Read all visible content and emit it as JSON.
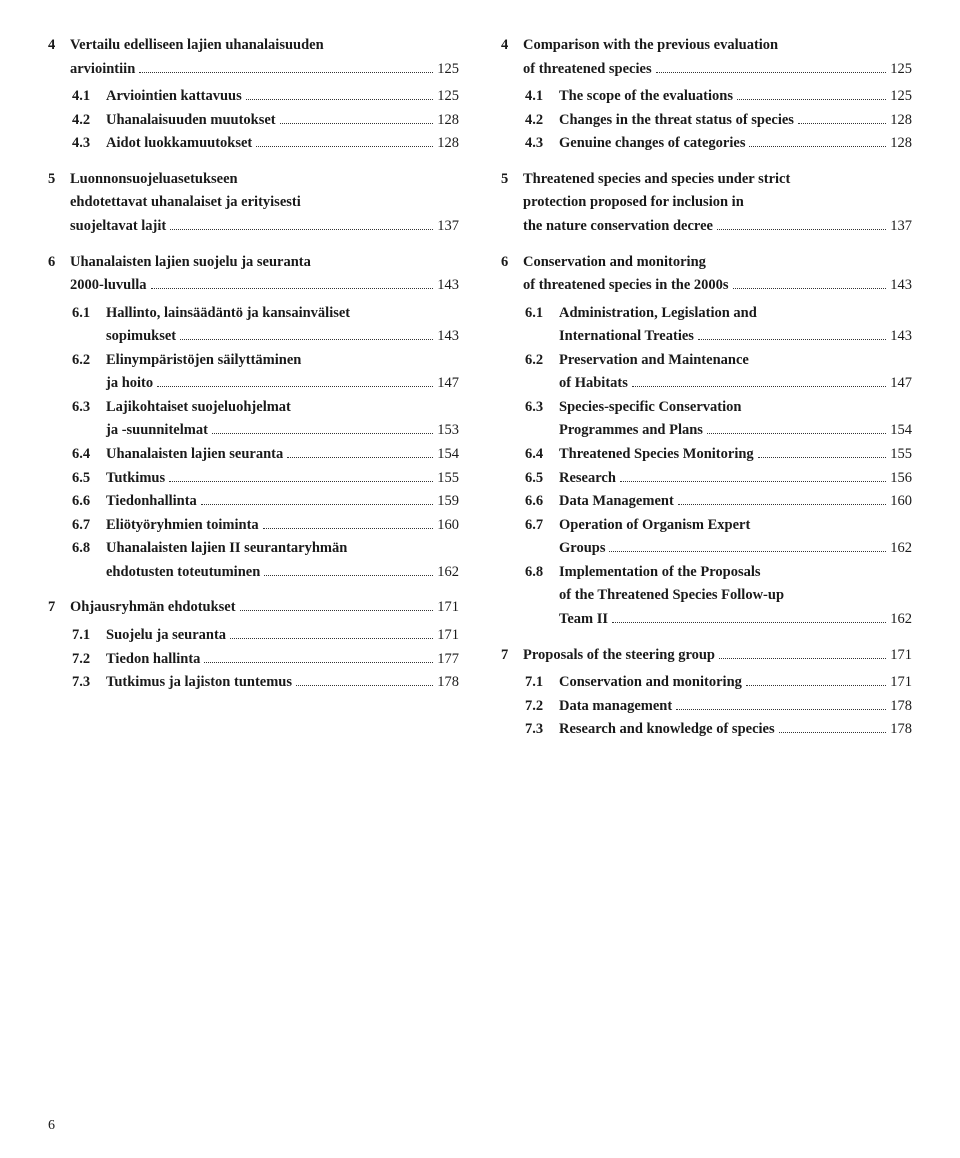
{
  "pageNumber": "6",
  "left": {
    "groups": [
      {
        "num": "4",
        "title_lines": [
          "Vertailu edelliseen lajien uhanalaisuuden",
          "arviointiin"
        ],
        "page": "125",
        "subs": [
          {
            "num": "4.1",
            "lines": [
              "Arviointien kattavuus"
            ],
            "page": "125"
          },
          {
            "num": "4.2",
            "lines": [
              "Uhanalaisuuden muutokset"
            ],
            "page": "128"
          },
          {
            "num": "4.3",
            "lines": [
              "Aidot luokkamuutokset"
            ],
            "page": "128"
          }
        ]
      },
      {
        "num": "5",
        "title_lines": [
          "Luonnonsuojeluasetukseen",
          "ehdotettavat uhanalaiset ja erityisesti",
          "suojeltavat lajit"
        ],
        "page": "137",
        "subs": []
      },
      {
        "num": "6",
        "title_lines": [
          "Uhanalaisten lajien suojelu ja seuranta",
          "2000-luvulla"
        ],
        "page": "143",
        "subs": [
          {
            "num": "6.1",
            "lines": [
              "Hallinto, lainsäädäntö ja kansainväliset",
              "sopimukset"
            ],
            "page": "143"
          },
          {
            "num": "6.2",
            "lines": [
              "Elinympäristöjen säilyttäminen",
              "ja hoito"
            ],
            "page": "147"
          },
          {
            "num": "6.3",
            "lines": [
              "Lajikohtaiset suojeluohjelmat",
              "ja -suunnitelmat"
            ],
            "page": "153"
          },
          {
            "num": "6.4",
            "lines": [
              "Uhanalaisten lajien seuranta"
            ],
            "page": "154"
          },
          {
            "num": "6.5",
            "lines": [
              "Tutkimus"
            ],
            "page": "155"
          },
          {
            "num": "6.6",
            "lines": [
              "Tiedonhallinta"
            ],
            "page": "159"
          },
          {
            "num": "6.7",
            "lines": [
              "Eliötyöryhmien toiminta"
            ],
            "page": "160"
          },
          {
            "num": "6.8",
            "lines": [
              "Uhanalaisten lajien II seurantaryhmän",
              "ehdotusten toteutuminen"
            ],
            "page": "162"
          }
        ]
      },
      {
        "num": "7",
        "title_lines": [
          "Ohjausryhmän ehdotukset"
        ],
        "page": "171",
        "subs": [
          {
            "num": "7.1",
            "lines": [
              "Suojelu ja seuranta"
            ],
            "page": "171"
          },
          {
            "num": "7.2",
            "lines": [
              "Tiedon hallinta"
            ],
            "page": "177"
          },
          {
            "num": "7.3",
            "lines": [
              "Tutkimus ja lajiston tuntemus"
            ],
            "page": "178"
          }
        ]
      }
    ]
  },
  "right": {
    "groups": [
      {
        "num": "4",
        "title_lines": [
          "Comparison with the previous evaluation",
          "of threatened species"
        ],
        "page": "125",
        "subs": [
          {
            "num": "4.1",
            "lines": [
              "The scope of the evaluations"
            ],
            "page": "125"
          },
          {
            "num": "4.2",
            "lines": [
              "Changes in the threat status of species"
            ],
            "page": "128"
          },
          {
            "num": "4.3",
            "lines": [
              "Genuine changes of categories"
            ],
            "page": "128"
          }
        ]
      },
      {
        "num": "5",
        "title_lines": [
          "Threatened species and species under strict",
          "protection proposed for inclusion in",
          "the nature conservation decree"
        ],
        "page": "137",
        "subs": []
      },
      {
        "num": "6",
        "title_lines": [
          "Conservation and monitoring",
          "of threatened species in the 2000s"
        ],
        "page": "143",
        "subs": [
          {
            "num": "6.1",
            "lines": [
              "Administration, Legislation and",
              "International Treaties"
            ],
            "page": "143"
          },
          {
            "num": "6.2",
            "lines": [
              "Preservation and Maintenance",
              "of Habitats"
            ],
            "page": "147"
          },
          {
            "num": "6.3",
            "lines": [
              "Species-specific Conservation",
              "Programmes and Plans"
            ],
            "page": "154"
          },
          {
            "num": "6.4",
            "lines": [
              "Threatened Species Monitoring"
            ],
            "page": "155"
          },
          {
            "num": "6.5",
            "lines": [
              "Research"
            ],
            "page": "156"
          },
          {
            "num": "6.6",
            "lines": [
              "Data Management"
            ],
            "page": "160"
          },
          {
            "num": "6.7",
            "lines": [
              "Operation of Organism Expert",
              "Groups"
            ],
            "page": "162"
          },
          {
            "num": "6.8",
            "lines": [
              "Implementation of the Proposals",
              "of the Threatened Species Follow-up",
              "Team II"
            ],
            "page": "162"
          }
        ]
      },
      {
        "num": "7",
        "title_lines": [
          "Proposals of the steering group"
        ],
        "page": "171",
        "subs": [
          {
            "num": "7.1",
            "lines": [
              "Conservation and monitoring"
            ],
            "page": "171"
          },
          {
            "num": "7.2",
            "lines": [
              "Data management"
            ],
            "page": "178"
          },
          {
            "num": "7.3",
            "lines": [
              "Research and knowledge of species"
            ],
            "page": "178"
          }
        ]
      }
    ]
  }
}
